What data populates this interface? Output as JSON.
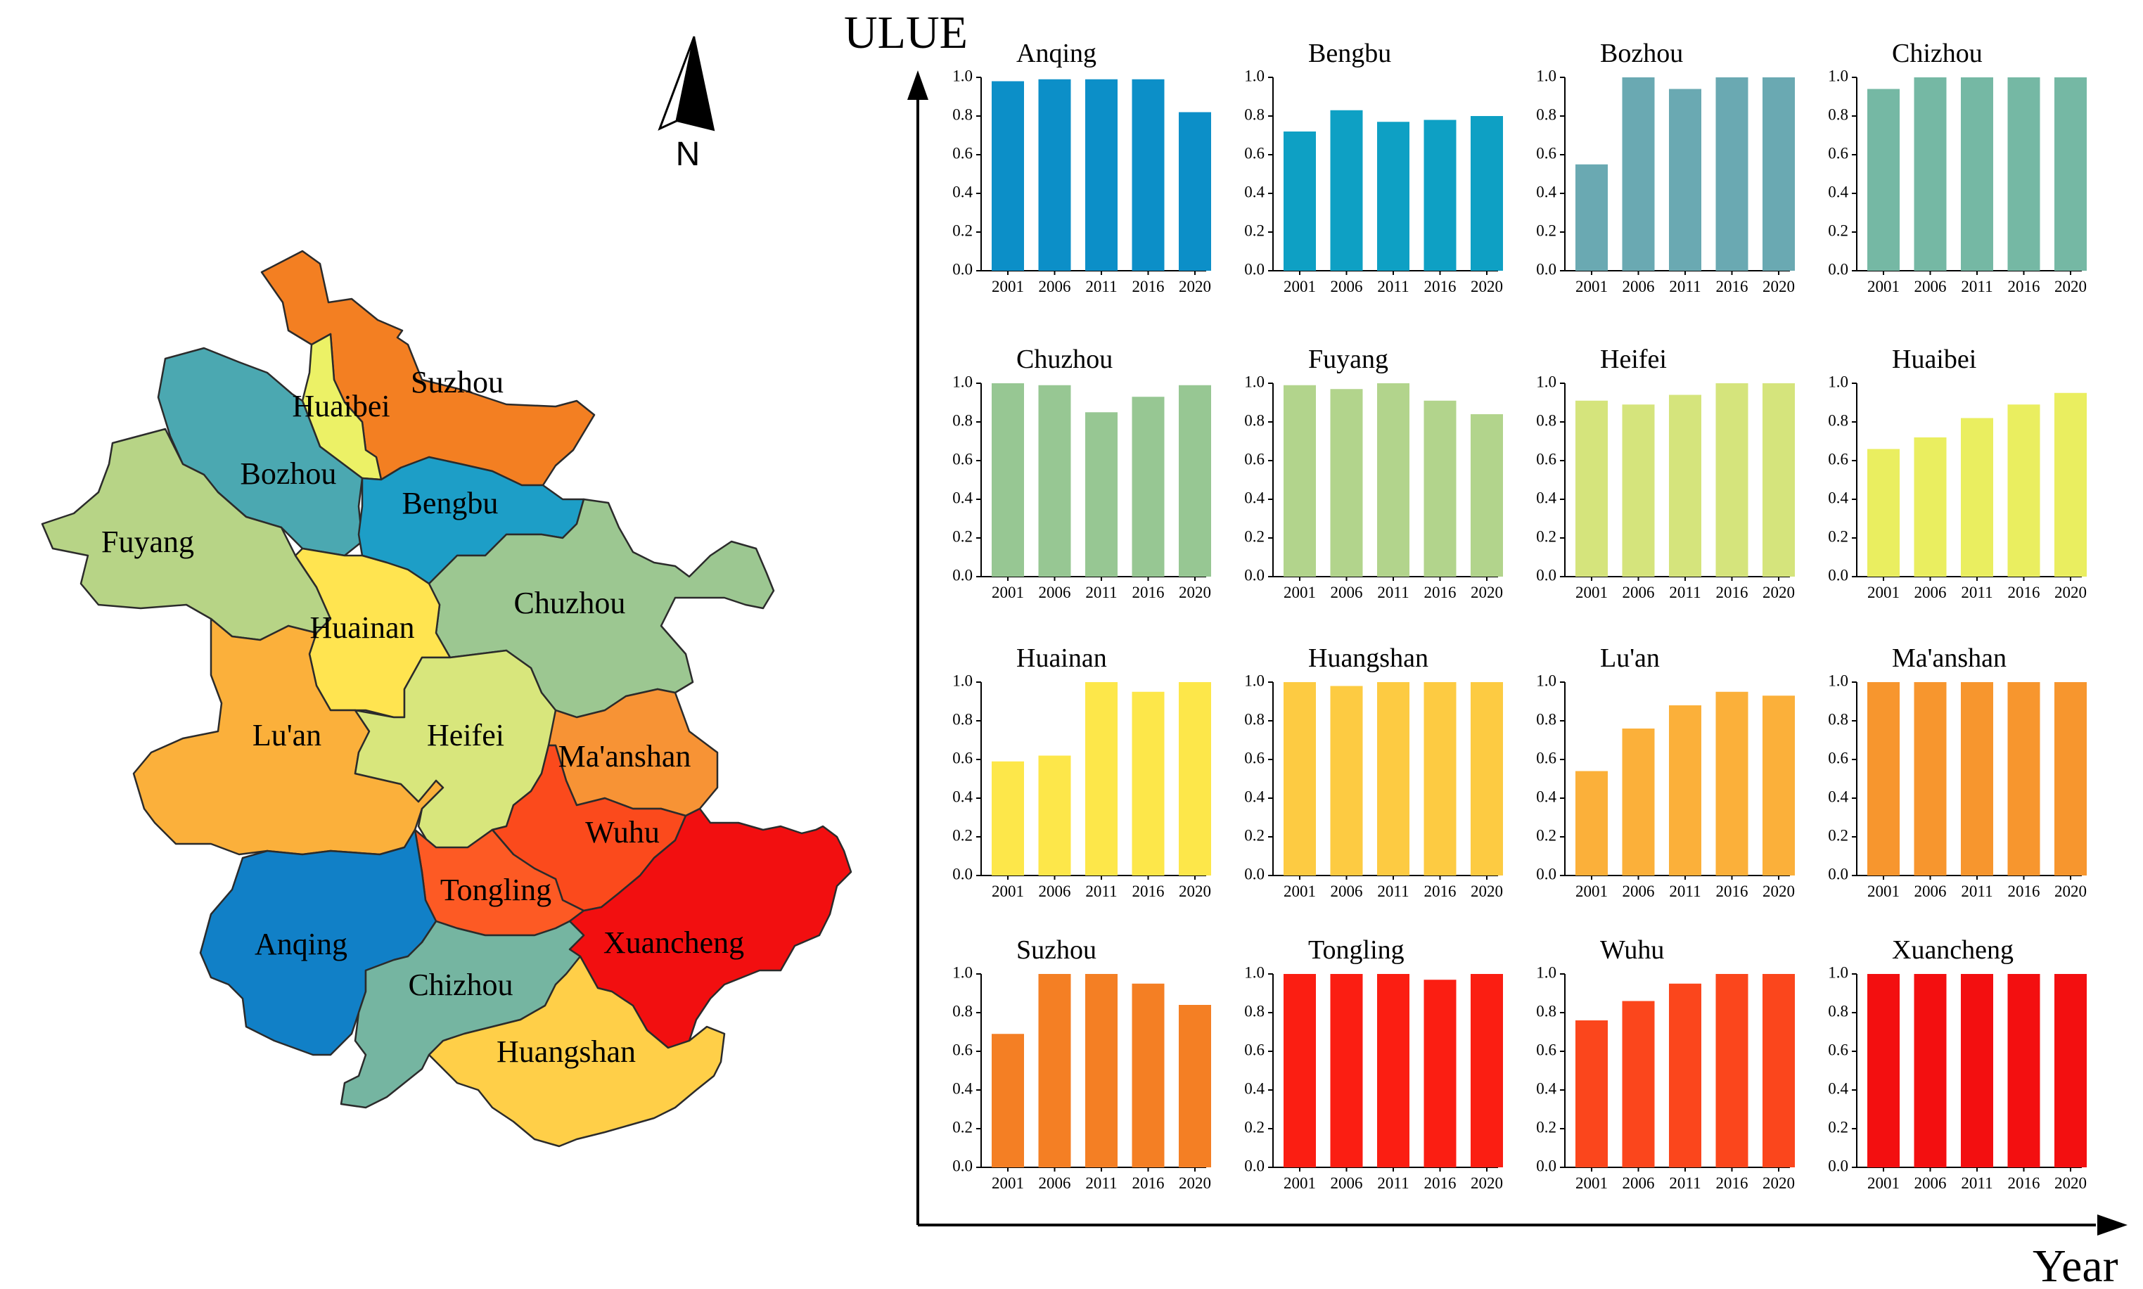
{
  "figure": {
    "y_label": "ULUE",
    "x_label": "Year",
    "north_label": "N"
  },
  "map": {
    "regions": [
      {
        "name": "Suzhou",
        "color": "#f37f22"
      },
      {
        "name": "Huaibei",
        "color": "#ecf166"
      },
      {
        "name": "Bozhou",
        "color": "#4ba8b1"
      },
      {
        "name": "Bengbu",
        "color": "#1d9ec7"
      },
      {
        "name": "Fuyang",
        "color": "#b7d486"
      },
      {
        "name": "Chuzhou",
        "color": "#9cc791"
      },
      {
        "name": "Huainan",
        "color": "#ffe450"
      },
      {
        "name": "Lu'an",
        "color": "#fbb03b"
      },
      {
        "name": "Heifei",
        "color": "#d8e67c"
      },
      {
        "name": "Ma'anshan",
        "color": "#f79335"
      },
      {
        "name": "Wuhu",
        "color": "#fb4a1c"
      },
      {
        "name": "Tongling",
        "color": "#fd5a24"
      },
      {
        "name": "Xuancheng",
        "color": "#f20f10"
      },
      {
        "name": "Anqing",
        "color": "#1180c7"
      },
      {
        "name": "Chizhou",
        "color": "#75b5a1"
      },
      {
        "name": "Huangshan",
        "color": "#ffcf48"
      }
    ]
  },
  "chart_data": {
    "type": "bar",
    "y_axis_label": "ULUE",
    "x_axis_label": "Year",
    "categories": [
      "2001",
      "2006",
      "2011",
      "2016",
      "2020"
    ],
    "ylim": [
      0,
      1.0
    ],
    "yticks": [
      "0.0",
      "0.2",
      "0.4",
      "0.6",
      "0.8",
      "1.0"
    ],
    "panels": [
      {
        "title": "Anqing",
        "color": "#0c8fc8",
        "values": [
          0.98,
          0.99,
          0.99,
          0.99,
          0.82
        ]
      },
      {
        "title": "Bengbu",
        "color": "#0ea0c4",
        "values": [
          0.72,
          0.83,
          0.77,
          0.78,
          0.8
        ]
      },
      {
        "title": "Bozhou",
        "color": "#6aa9b2",
        "values": [
          0.55,
          1.0,
          0.94,
          1.0,
          1.0
        ]
      },
      {
        "title": "Chizhou",
        "color": "#75b8a4",
        "values": [
          0.94,
          1.0,
          1.0,
          1.0,
          1.0
        ]
      },
      {
        "title": "Chuzhou",
        "color": "#97c793",
        "values": [
          1.0,
          0.99,
          0.85,
          0.93,
          0.99
        ]
      },
      {
        "title": "Fuyang",
        "color": "#b2d48c",
        "values": [
          0.99,
          0.97,
          1.0,
          0.91,
          0.84
        ]
      },
      {
        "title": "Heifei",
        "color": "#d5e47c",
        "values": [
          0.91,
          0.89,
          0.94,
          1.0,
          1.0
        ]
      },
      {
        "title": "Huaibei",
        "color": "#eaee60",
        "values": [
          0.66,
          0.72,
          0.82,
          0.89,
          0.95
        ]
      },
      {
        "title": "Huainan",
        "color": "#fde74a",
        "values": [
          0.59,
          0.62,
          1.0,
          0.95,
          1.0
        ]
      },
      {
        "title": "Huangshan",
        "color": "#fdcb42",
        "values": [
          1.0,
          0.98,
          1.0,
          1.0,
          1.0
        ]
      },
      {
        "title": "Lu'an",
        "color": "#fbb03a",
        "values": [
          0.54,
          0.76,
          0.88,
          0.95,
          0.93
        ]
      },
      {
        "title": "Ma'anshan",
        "color": "#f7962e",
        "values": [
          1.0,
          1.0,
          1.0,
          1.0,
          1.0
        ]
      },
      {
        "title": "Suzhou",
        "color": "#f47f24",
        "values": [
          0.69,
          1.0,
          1.0,
          0.95,
          0.84
        ]
      },
      {
        "title": "Tongling",
        "color": "#fb1e12",
        "values": [
          1.0,
          1.0,
          1.0,
          0.97,
          1.0
        ]
      },
      {
        "title": "Wuhu",
        "color": "#fb461c",
        "values": [
          0.76,
          0.86,
          0.95,
          1.0,
          1.0
        ]
      },
      {
        "title": "Xuancheng",
        "color": "#f30f10",
        "values": [
          1.0,
          1.0,
          1.0,
          1.0,
          1.0
        ]
      }
    ]
  }
}
